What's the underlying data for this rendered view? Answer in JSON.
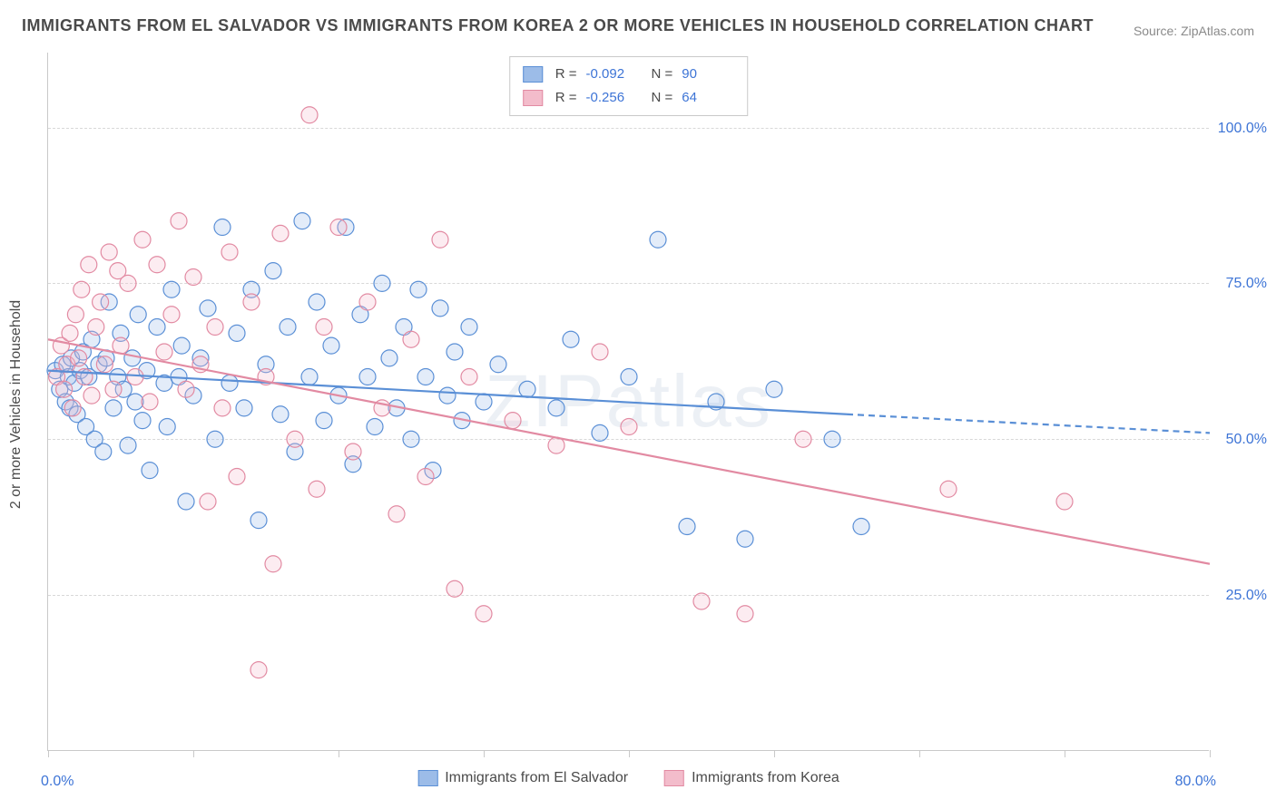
{
  "title": "IMMIGRANTS FROM EL SALVADOR VS IMMIGRANTS FROM KOREA 2 OR MORE VEHICLES IN HOUSEHOLD CORRELATION CHART",
  "source": "Source: ZipAtlas.com",
  "watermark": "ZIPatlas",
  "y_axis_title": "2 or more Vehicles in Household",
  "chart": {
    "type": "scatter",
    "xlim": [
      0,
      80
    ],
    "ylim": [
      0,
      112
    ],
    "x_ticks": [
      0,
      10,
      20,
      30,
      40,
      50,
      60,
      70,
      80
    ],
    "x_tick_labels_shown": {
      "min": "0.0%",
      "max": "80.0%"
    },
    "y_gridlines": [
      25,
      50,
      75,
      100
    ],
    "y_tick_labels": [
      "25.0%",
      "50.0%",
      "75.0%",
      "100.0%"
    ],
    "background_color": "#ffffff",
    "grid_color": "#d8d8d8",
    "axis_color": "#c9c9c9",
    "tick_label_color": "#3d74d6",
    "marker_radius": 9,
    "marker_stroke_width": 1.2,
    "marker_fill_opacity": 0.28,
    "trend_line_width": 2.2,
    "trend_dash": "7,5"
  },
  "series": [
    {
      "id": "el_salvador",
      "label": "Immigrants from El Salvador",
      "color_stroke": "#5a8fd6",
      "color_fill": "#9cbce8",
      "R": "-0.092",
      "N": "90",
      "trend": {
        "x1": 0,
        "y1": 61,
        "x2_solid": 55,
        "y2_solid": 54,
        "x2": 80,
        "y2": 51
      },
      "points": [
        [
          0.5,
          61
        ],
        [
          0.8,
          58
        ],
        [
          1.0,
          62
        ],
        [
          1.2,
          56
        ],
        [
          1.4,
          60
        ],
        [
          1.5,
          55
        ],
        [
          1.6,
          63
        ],
        [
          1.8,
          59
        ],
        [
          2.0,
          54
        ],
        [
          2.2,
          61
        ],
        [
          2.4,
          64
        ],
        [
          2.6,
          52
        ],
        [
          2.8,
          60
        ],
        [
          3.0,
          66
        ],
        [
          3.2,
          50
        ],
        [
          3.5,
          62
        ],
        [
          3.8,
          48
        ],
        [
          4.0,
          63
        ],
        [
          4.2,
          72
        ],
        [
          4.5,
          55
        ],
        [
          4.8,
          60
        ],
        [
          5.0,
          67
        ],
        [
          5.2,
          58
        ],
        [
          5.5,
          49
        ],
        [
          5.8,
          63
        ],
        [
          6.0,
          56
        ],
        [
          6.2,
          70
        ],
        [
          6.5,
          53
        ],
        [
          6.8,
          61
        ],
        [
          7.0,
          45
        ],
        [
          7.5,
          68
        ],
        [
          8.0,
          59
        ],
        [
          8.2,
          52
        ],
        [
          8.5,
          74
        ],
        [
          9.0,
          60
        ],
        [
          9.2,
          65
        ],
        [
          9.5,
          40
        ],
        [
          10.0,
          57
        ],
        [
          10.5,
          63
        ],
        [
          11.0,
          71
        ],
        [
          11.5,
          50
        ],
        [
          12.0,
          84
        ],
        [
          12.5,
          59
        ],
        [
          13.0,
          67
        ],
        [
          13.5,
          55
        ],
        [
          14.0,
          74
        ],
        [
          14.5,
          37
        ],
        [
          15.0,
          62
        ],
        [
          15.5,
          77
        ],
        [
          16.0,
          54
        ],
        [
          16.5,
          68
        ],
        [
          17.0,
          48
        ],
        [
          17.5,
          85
        ],
        [
          18.0,
          60
        ],
        [
          18.5,
          72
        ],
        [
          19.0,
          53
        ],
        [
          19.5,
          65
        ],
        [
          20.0,
          57
        ],
        [
          20.5,
          84
        ],
        [
          21.0,
          46
        ],
        [
          21.5,
          70
        ],
        [
          22.0,
          60
        ],
        [
          22.5,
          52
        ],
        [
          23.0,
          75
        ],
        [
          23.5,
          63
        ],
        [
          24.0,
          55
        ],
        [
          24.5,
          68
        ],
        [
          25.0,
          50
        ],
        [
          25.5,
          74
        ],
        [
          26.0,
          60
        ],
        [
          26.5,
          45
        ],
        [
          27.0,
          71
        ],
        [
          27.5,
          57
        ],
        [
          28.0,
          64
        ],
        [
          28.5,
          53
        ],
        [
          29.0,
          68
        ],
        [
          30.0,
          56
        ],
        [
          31.0,
          62
        ],
        [
          33.0,
          58
        ],
        [
          35.0,
          55
        ],
        [
          36.0,
          66
        ],
        [
          38.0,
          51
        ],
        [
          40.0,
          60
        ],
        [
          42.0,
          82
        ],
        [
          44.0,
          36
        ],
        [
          46.0,
          56
        ],
        [
          48.0,
          34
        ],
        [
          50.0,
          58
        ],
        [
          54.0,
          50
        ],
        [
          56.0,
          36
        ]
      ]
    },
    {
      "id": "korea",
      "label": "Immigrants from Korea",
      "color_stroke": "#e28aa2",
      "color_fill": "#f3bccb",
      "R": "-0.256",
      "N": "64",
      "trend": {
        "x1": 0,
        "y1": 66,
        "x2_solid": 80,
        "y2_solid": 30,
        "x2": 80,
        "y2": 30
      },
      "points": [
        [
          0.6,
          60
        ],
        [
          0.9,
          65
        ],
        [
          1.1,
          58
        ],
        [
          1.3,
          62
        ],
        [
          1.5,
          67
        ],
        [
          1.7,
          55
        ],
        [
          1.9,
          70
        ],
        [
          2.1,
          63
        ],
        [
          2.3,
          74
        ],
        [
          2.5,
          60
        ],
        [
          2.8,
          78
        ],
        [
          3.0,
          57
        ],
        [
          3.3,
          68
        ],
        [
          3.6,
          72
        ],
        [
          3.9,
          62
        ],
        [
          4.2,
          80
        ],
        [
          4.5,
          58
        ],
        [
          4.8,
          77
        ],
        [
          5.0,
          65
        ],
        [
          5.5,
          75
        ],
        [
          6.0,
          60
        ],
        [
          6.5,
          82
        ],
        [
          7.0,
          56
        ],
        [
          7.5,
          78
        ],
        [
          8.0,
          64
        ],
        [
          8.5,
          70
        ],
        [
          9.0,
          85
        ],
        [
          9.5,
          58
        ],
        [
          10.0,
          76
        ],
        [
          10.5,
          62
        ],
        [
          11.0,
          40
        ],
        [
          11.5,
          68
        ],
        [
          12.0,
          55
        ],
        [
          12.5,
          80
        ],
        [
          13.0,
          44
        ],
        [
          14.0,
          72
        ],
        [
          14.5,
          13
        ],
        [
          15.0,
          60
        ],
        [
          15.5,
          30
        ],
        [
          16.0,
          83
        ],
        [
          17.0,
          50
        ],
        [
          18.0,
          102
        ],
        [
          18.5,
          42
        ],
        [
          19.0,
          68
        ],
        [
          20.0,
          84
        ],
        [
          21.0,
          48
        ],
        [
          22.0,
          72
        ],
        [
          23.0,
          55
        ],
        [
          24.0,
          38
        ],
        [
          25.0,
          66
        ],
        [
          26.0,
          44
        ],
        [
          27.0,
          82
        ],
        [
          28.0,
          26
        ],
        [
          29.0,
          60
        ],
        [
          30.0,
          22
        ],
        [
          32.0,
          53
        ],
        [
          35.0,
          49
        ],
        [
          38.0,
          64
        ],
        [
          40.0,
          52
        ],
        [
          45.0,
          24
        ],
        [
          48.0,
          22
        ],
        [
          52.0,
          50
        ],
        [
          62.0,
          42
        ],
        [
          70.0,
          40
        ]
      ]
    }
  ],
  "legend_labels": {
    "R": "R =",
    "N": "N ="
  }
}
